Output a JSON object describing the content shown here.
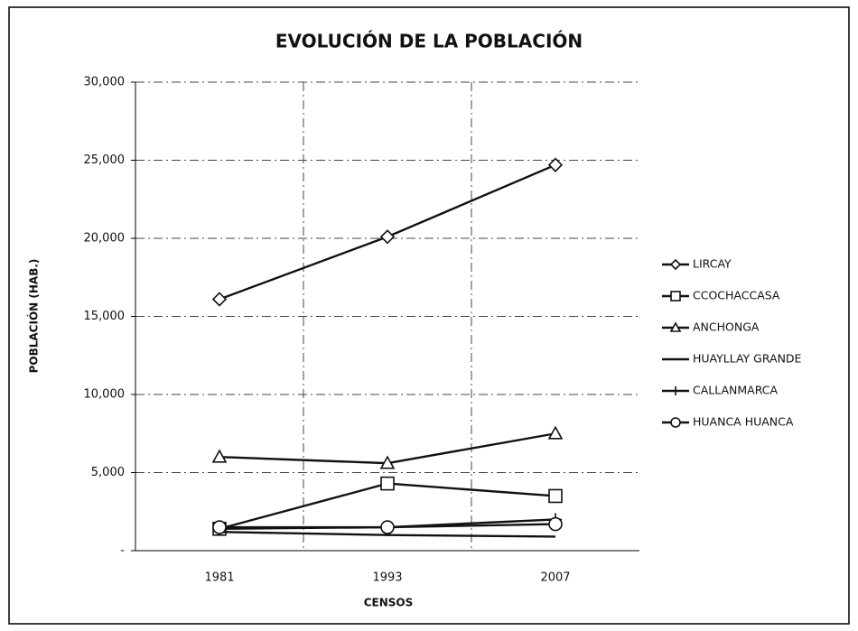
{
  "chart_data": {
    "type": "line",
    "title": "EVOLUCIÓN DE LA POBLACIÓN",
    "x_label": "CENSOS",
    "y_label": "POBLACIÓN (HAB.)",
    "categories": [
      "1981",
      "1993",
      "2007"
    ],
    "ylim": [
      0,
      30000
    ],
    "yticks": [
      {
        "value": 0,
        "label": "-"
      },
      {
        "value": 5000,
        "label": "5,000"
      },
      {
        "value": 10000,
        "label": "10,000"
      },
      {
        "value": 15000,
        "label": "15,000"
      },
      {
        "value": 20000,
        "label": "20,000"
      },
      {
        "value": 25000,
        "label": "25,000"
      },
      {
        "value": 30000,
        "label": "30,000"
      }
    ],
    "grid": true,
    "legend": "right",
    "series": [
      {
        "name": "LIRCAY",
        "color": "#111111",
        "marker": "diamond",
        "values": [
          16100,
          20100,
          24700
        ]
      },
      {
        "name": "CCOCHACCASA",
        "color": "#111111",
        "marker": "square",
        "values": [
          1400,
          4300,
          3500
        ]
      },
      {
        "name": "ANCHONGA",
        "color": "#111111",
        "marker": "triangle",
        "values": [
          6000,
          5600,
          7500
        ]
      },
      {
        "name": "HUAYLLAY GRANDE",
        "color": "#111111",
        "marker": "none",
        "values": [
          1200,
          1000,
          900
        ]
      },
      {
        "name": "CALLANMARCA",
        "color": "#111111",
        "marker": "plus",
        "values": [
          1400,
          1500,
          2000
        ]
      },
      {
        "name": "HUANCA HUANCA",
        "color": "#111111",
        "marker": "circle",
        "values": [
          1500,
          1500,
          1700
        ]
      }
    ]
  }
}
